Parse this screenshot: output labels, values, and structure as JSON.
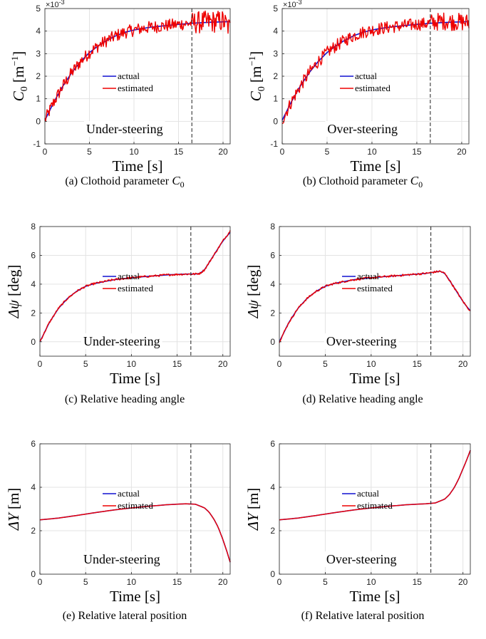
{
  "chart_data": [
    {
      "id": "a",
      "type": "line",
      "caption_letter": "(a)",
      "caption_text": "Clothoid parameter",
      "caption_math": "C",
      "caption_sub": "0",
      "caption_sup": "",
      "ylabel_main": "C",
      "ylabel_sub": "0",
      "ylabel_unit": "[m",
      "ylabel_sup": "−1",
      "ylabel_close": "]",
      "xlabel": "Time [s]",
      "xlim": [
        0,
        20.8
      ],
      "ylim": [
        -1,
        5
      ],
      "xticks": [
        0,
        5,
        10,
        15,
        20
      ],
      "yticks": [
        -1,
        0,
        1,
        2,
        3,
        4,
        5
      ],
      "y_scale_text": "×10",
      "y_scale_exp": "-3",
      "annotation": "Under-steering",
      "vline_x": 16.5,
      "grid": true,
      "legend": [
        "actual",
        "estimated"
      ],
      "series": [
        {
          "name": "actual",
          "color": "#1010d0",
          "x": [
            0,
            1,
            2,
            3,
            4,
            5,
            6,
            7,
            8,
            9,
            10,
            11,
            12,
            13,
            14,
            15,
            16,
            17,
            18,
            19,
            20,
            20.8
          ],
          "y": [
            0.05,
            0.85,
            1.55,
            2.15,
            2.65,
            3.05,
            3.35,
            3.6,
            3.8,
            3.95,
            4.05,
            4.12,
            4.18,
            4.22,
            4.26,
            4.3,
            4.33,
            4.36,
            4.38,
            4.4,
            4.41,
            4.42
          ]
        },
        {
          "name": "estimated",
          "color": "#ee0000",
          "noise": 0.28,
          "noise_end": 0.5,
          "x": [
            0,
            1,
            2,
            3,
            4,
            5,
            6,
            7,
            8,
            9,
            10,
            11,
            12,
            13,
            14,
            15,
            16,
            17,
            18,
            19,
            20,
            20.8
          ],
          "y": [
            0.05,
            0.85,
            1.55,
            2.15,
            2.65,
            3.05,
            3.35,
            3.6,
            3.8,
            3.95,
            4.05,
            4.12,
            4.18,
            4.22,
            4.26,
            4.3,
            4.33,
            4.38,
            4.4,
            4.42,
            4.45,
            4.1
          ]
        }
      ]
    },
    {
      "id": "b",
      "type": "line",
      "caption_letter": "(b)",
      "caption_text": "Clothoid parameter",
      "caption_math": "C",
      "caption_sub": "0",
      "caption_sup": "",
      "ylabel_main": "C",
      "ylabel_sub": "0",
      "ylabel_unit": "[m",
      "ylabel_sup": "−1",
      "ylabel_close": "]",
      "xlabel": "Time [s]",
      "xlim": [
        0,
        20.8
      ],
      "ylim": [
        -1,
        5
      ],
      "xticks": [
        0,
        5,
        10,
        15,
        20
      ],
      "yticks": [
        -1,
        0,
        1,
        2,
        3,
        4,
        5
      ],
      "y_scale_text": "×10",
      "y_scale_exp": "-3",
      "annotation": "Over-steering",
      "vline_x": 16.5,
      "grid": true,
      "legend": [
        "actual",
        "estimated"
      ],
      "series": [
        {
          "name": "actual",
          "color": "#1010d0",
          "x": [
            0,
            1,
            2,
            3,
            4,
            5,
            6,
            7,
            8,
            9,
            10,
            11,
            12,
            13,
            14,
            15,
            16,
            17,
            18,
            19,
            20,
            20.8
          ],
          "y": [
            0.05,
            0.85,
            1.55,
            2.15,
            2.65,
            3.05,
            3.35,
            3.6,
            3.8,
            3.95,
            4.05,
            4.12,
            4.18,
            4.22,
            4.26,
            4.3,
            4.33,
            4.36,
            4.38,
            4.4,
            4.41,
            4.42
          ]
        },
        {
          "name": "estimated",
          "color": "#ee0000",
          "noise": 0.28,
          "noise_end": 0.4,
          "x": [
            0,
            1,
            2,
            3,
            4,
            5,
            6,
            7,
            8,
            9,
            10,
            11,
            12,
            13,
            14,
            15,
            16,
            17,
            18,
            19,
            20,
            20.8
          ],
          "y": [
            0.05,
            0.85,
            1.55,
            2.15,
            2.65,
            3.05,
            3.35,
            3.6,
            3.8,
            3.95,
            4.05,
            4.12,
            4.18,
            4.22,
            4.26,
            4.3,
            4.33,
            4.4,
            4.45,
            4.42,
            4.4,
            4.38
          ]
        }
      ]
    },
    {
      "id": "c",
      "type": "line",
      "caption_letter": "(c)",
      "caption_text": "Relative heading angle",
      "ylabel_main": "Δψ",
      "ylabel_sub": "",
      "ylabel_unit": "[deg]",
      "ylabel_sup": "",
      "ylabel_close": "",
      "xlabel": "Time [s]",
      "xlim": [
        0,
        20.8
      ],
      "ylim": [
        -1,
        8
      ],
      "xticks": [
        0,
        5,
        10,
        15,
        20
      ],
      "yticks": [
        0,
        2,
        4,
        6,
        8
      ],
      "annotation": "Under-steering",
      "vline_x": 16.5,
      "grid": true,
      "legend": [
        "actual",
        "estimated"
      ],
      "series": [
        {
          "name": "actual",
          "color": "#1010d0",
          "x": [
            0,
            1,
            2,
            3,
            4,
            5,
            6,
            8,
            10,
            12,
            14,
            16,
            17,
            17.5,
            18,
            18.5,
            19,
            19.5,
            20,
            20.4,
            20.8
          ],
          "y": [
            0.0,
            1.3,
            2.3,
            3.0,
            3.5,
            3.85,
            4.05,
            4.3,
            4.45,
            4.55,
            4.65,
            4.7,
            4.7,
            4.75,
            5.0,
            5.5,
            6.0,
            6.5,
            7.0,
            7.3,
            7.6
          ]
        },
        {
          "name": "estimated",
          "color": "#ee0000",
          "noise": 0.07,
          "noise_end": 0.07,
          "x": [
            0,
            1,
            2,
            3,
            4,
            5,
            6,
            8,
            10,
            12,
            14,
            16,
            17,
            17.5,
            18,
            18.5,
            19,
            19.5,
            20,
            20.4,
            20.8
          ],
          "y": [
            0.0,
            1.3,
            2.3,
            3.0,
            3.5,
            3.85,
            4.05,
            4.3,
            4.45,
            4.55,
            4.65,
            4.7,
            4.7,
            4.75,
            5.0,
            5.5,
            6.0,
            6.5,
            7.0,
            7.35,
            7.7
          ]
        }
      ]
    },
    {
      "id": "d",
      "type": "line",
      "caption_letter": "(d)",
      "caption_text": "Relative heading angle",
      "ylabel_main": "Δψ",
      "ylabel_sub": "",
      "ylabel_unit": "[deg]",
      "ylabel_sup": "",
      "ylabel_close": "",
      "xlabel": "Time [s]",
      "xlim": [
        0,
        20.8
      ],
      "ylim": [
        -1,
        8
      ],
      "xticks": [
        0,
        5,
        10,
        15,
        20
      ],
      "yticks": [
        0,
        2,
        4,
        6,
        8
      ],
      "annotation": "Over-steering",
      "vline_x": 16.5,
      "grid": true,
      "legend": [
        "actual",
        "estimated"
      ],
      "series": [
        {
          "name": "actual",
          "color": "#1010d0",
          "x": [
            0,
            1,
            2,
            3,
            4,
            5,
            6,
            8,
            10,
            12,
            14,
            16,
            17,
            17.5,
            18,
            18.5,
            19,
            19.5,
            20,
            20.4,
            20.8
          ],
          "y": [
            0.0,
            1.3,
            2.3,
            3.0,
            3.5,
            3.85,
            4.05,
            4.3,
            4.45,
            4.55,
            4.65,
            4.75,
            4.85,
            4.9,
            4.75,
            4.3,
            3.8,
            3.3,
            2.8,
            2.45,
            2.15
          ]
        },
        {
          "name": "estimated",
          "color": "#ee0000",
          "noise": 0.07,
          "noise_end": 0.07,
          "x": [
            0,
            1,
            2,
            3,
            4,
            5,
            6,
            8,
            10,
            12,
            14,
            16,
            17,
            17.5,
            18,
            18.5,
            19,
            19.5,
            20,
            20.4,
            20.8
          ],
          "y": [
            0.0,
            1.3,
            2.3,
            3.0,
            3.5,
            3.85,
            4.05,
            4.3,
            4.45,
            4.55,
            4.65,
            4.75,
            4.85,
            4.9,
            4.75,
            4.3,
            3.8,
            3.3,
            2.8,
            2.45,
            2.15
          ]
        }
      ]
    },
    {
      "id": "e",
      "type": "line",
      "caption_letter": "(e)",
      "caption_text": "Relative lateral position",
      "ylabel_main": "ΔY",
      "ylabel_sub": "",
      "ylabel_unit": "[m]",
      "ylabel_sup": "",
      "ylabel_close": "",
      "xlabel": "Time [s]",
      "xlim": [
        0,
        20.8
      ],
      "ylim": [
        0,
        6
      ],
      "xticks": [
        0,
        5,
        10,
        15,
        20
      ],
      "yticks": [
        0,
        2,
        4,
        6
      ],
      "annotation": "Under-steering",
      "vline_x": 16.5,
      "grid": true,
      "legend": [
        "actual",
        "estimated"
      ],
      "series": [
        {
          "name": "actual",
          "color": "#1010d0",
          "x": [
            0,
            2,
            4,
            6,
            8,
            10,
            12,
            14,
            16,
            17,
            18,
            18.5,
            19,
            19.5,
            20,
            20.4,
            20.8
          ],
          "y": [
            2.5,
            2.58,
            2.7,
            2.83,
            2.95,
            3.05,
            3.13,
            3.2,
            3.24,
            3.22,
            3.05,
            2.85,
            2.55,
            2.15,
            1.6,
            1.1,
            0.55
          ]
        },
        {
          "name": "estimated",
          "color": "#ee0000",
          "noise": 0.0,
          "noise_end": 0.0,
          "x": [
            0,
            2,
            4,
            6,
            8,
            10,
            12,
            14,
            16,
            17,
            18,
            18.5,
            19,
            19.5,
            20,
            20.4,
            20.8
          ],
          "y": [
            2.5,
            2.58,
            2.7,
            2.83,
            2.95,
            3.05,
            3.13,
            3.2,
            3.24,
            3.22,
            3.05,
            2.85,
            2.55,
            2.15,
            1.6,
            1.1,
            0.55
          ]
        }
      ]
    },
    {
      "id": "f",
      "type": "line",
      "caption_letter": "(f)",
      "caption_text": "Relative lateral position",
      "ylabel_main": "ΔY",
      "ylabel_sub": "",
      "ylabel_unit": "[m]",
      "ylabel_sup": "",
      "ylabel_close": "",
      "xlabel": "Time [s]",
      "xlim": [
        0,
        20.8
      ],
      "ylim": [
        0,
        6
      ],
      "xticks": [
        0,
        5,
        10,
        15,
        20
      ],
      "yticks": [
        0,
        2,
        4,
        6
      ],
      "annotation": "Over-steering",
      "vline_x": 16.5,
      "grid": true,
      "legend": [
        "actual",
        "estimated"
      ],
      "series": [
        {
          "name": "actual",
          "color": "#1010d0",
          "x": [
            0,
            2,
            4,
            6,
            8,
            10,
            12,
            14,
            16,
            17,
            18,
            18.5,
            19,
            19.5,
            20,
            20.4,
            20.8
          ],
          "y": [
            2.5,
            2.58,
            2.7,
            2.83,
            2.95,
            3.05,
            3.13,
            3.2,
            3.24,
            3.28,
            3.45,
            3.65,
            3.95,
            4.35,
            4.85,
            5.25,
            5.7
          ]
        },
        {
          "name": "estimated",
          "color": "#ee0000",
          "noise": 0.0,
          "noise_end": 0.0,
          "x": [
            0,
            2,
            4,
            6,
            8,
            10,
            12,
            14,
            16,
            17,
            18,
            18.5,
            19,
            19.5,
            20,
            20.4,
            20.8
          ],
          "y": [
            2.5,
            2.58,
            2.7,
            2.83,
            2.95,
            3.05,
            3.13,
            3.2,
            3.24,
            3.28,
            3.45,
            3.65,
            3.95,
            4.35,
            4.85,
            5.25,
            5.7
          ]
        }
      ]
    }
  ]
}
